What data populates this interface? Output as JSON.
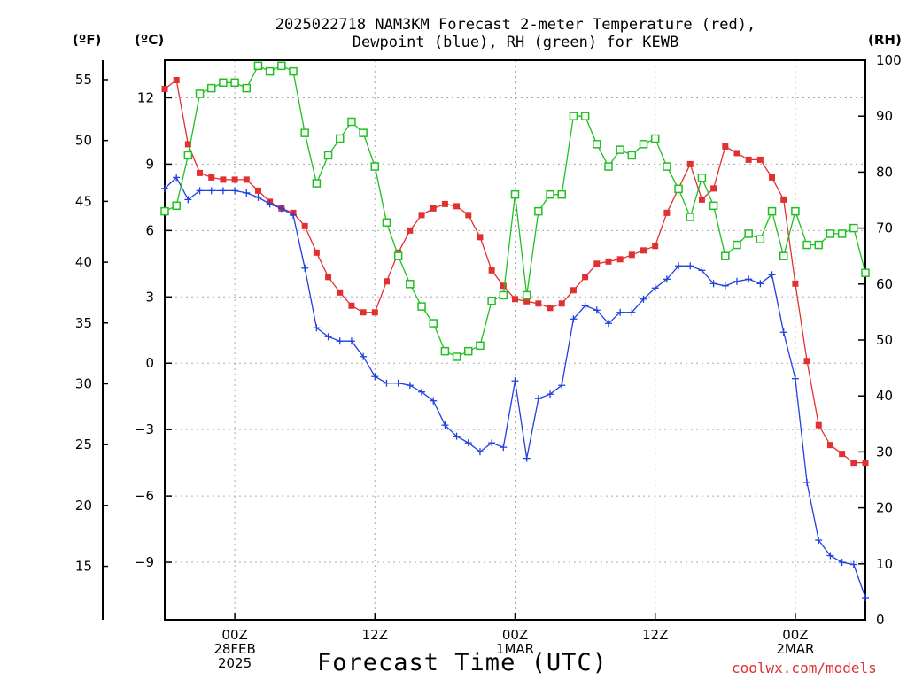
{
  "titles": {
    "line1": "2025022718 NAM3KM Forecast 2-meter Temperature (red),",
    "line2": "Dewpoint (blue), RH (green) for KEWB"
  },
  "units": {
    "fahrenheit": "(ºF)",
    "celsius": "(ºC)",
    "rh": "(RH)"
  },
  "xaxis_title": "Forecast Time (UTC)",
  "credit": "coolwx.com/models",
  "chart_data": {
    "type": "line",
    "title": "2025022718 NAM3KM Forecast 2-meter Temperature (red), Dewpoint (blue), RH (green) for KEWB",
    "xlabel": "Forecast Time (UTC)",
    "x_start": "2025-02-27 18Z",
    "x_interval_hours": 1,
    "x_ticks": [
      {
        "hour": 6,
        "lines": [
          "00Z",
          "28FEB",
          "2025"
        ]
      },
      {
        "hour": 18,
        "lines": [
          "12Z"
        ]
      },
      {
        "hour": 30,
        "lines": [
          "00Z",
          "1MAR"
        ]
      },
      {
        "hour": 42,
        "lines": [
          "12Z"
        ]
      },
      {
        "hour": 54,
        "lines": [
          "00Z",
          "2MAR"
        ]
      }
    ],
    "left_axis_f": {
      "label": "(ºF)",
      "ylim": [
        10.6,
        56.6
      ],
      "ticks": [
        15,
        20,
        25,
        30,
        35,
        40,
        45,
        50,
        55
      ]
    },
    "left_axis_c": {
      "label": "(ºC)",
      "ylim": [
        -11.6,
        13.7
      ],
      "ticks": [
        -9,
        -6,
        -3,
        0,
        3,
        6,
        9,
        12
      ]
    },
    "right_axis_rh": {
      "label": "(RH)",
      "ylim": [
        0,
        100
      ],
      "ticks": [
        0,
        10,
        20,
        30,
        40,
        50,
        60,
        70,
        80,
        90,
        100
      ]
    },
    "series": [
      {
        "color": "#e03030",
        "marker": "square",
        "axis": "celsius",
        "values": [
          12.4,
          12.8,
          9.9,
          8.6,
          8.4,
          8.3,
          8.3,
          8.3,
          7.8,
          7.3,
          7.0,
          6.8,
          6.2,
          5.0,
          3.9,
          3.2,
          2.6,
          2.3,
          2.3,
          3.7,
          5.0,
          6.0,
          6.7,
          7.0,
          7.2,
          7.1,
          6.7,
          5.7,
          4.2,
          3.5,
          2.9,
          2.8,
          2.7,
          2.5,
          2.7,
          3.3,
          3.9,
          4.5,
          4.6,
          4.7,
          4.9,
          5.1,
          5.3,
          6.8,
          7.9,
          9.0,
          7.4,
          7.9,
          9.8,
          9.5,
          9.2,
          9.2,
          8.4,
          7.4,
          3.6,
          0.1,
          -2.8,
          -3.7,
          -4.1,
          -4.5,
          -4.5
        ]
      },
      {
        "color": "#2040e0",
        "marker": "plus",
        "axis": "celsius",
        "values": [
          7.9,
          8.4,
          7.4,
          7.8,
          7.8,
          7.8,
          7.8,
          7.7,
          7.5,
          7.2,
          7.0,
          6.7,
          4.3,
          1.6,
          1.2,
          1.0,
          1.0,
          0.3,
          -0.6,
          -0.9,
          -0.9,
          -1.0,
          -1.3,
          -1.7,
          -2.8,
          -3.3,
          -3.6,
          -4.0,
          -3.6,
          -3.8,
          -0.8,
          -4.3,
          -1.6,
          -1.4,
          -1.0,
          2.0,
          2.6,
          2.4,
          1.8,
          2.3,
          2.3,
          2.9,
          3.4,
          3.8,
          4.4,
          4.4,
          4.2,
          3.6,
          3.5,
          3.7,
          3.8,
          3.6,
          4.0,
          1.4,
          -0.7,
          -5.4,
          -8.0,
          -8.7,
          -9.0,
          -9.1,
          -10.6
        ]
      },
      {
        "color": "#20c020",
        "marker": "open-square",
        "axis": "rh",
        "values": [
          73,
          74,
          83,
          94,
          95,
          96,
          96,
          95,
          99,
          98,
          99,
          98,
          87,
          78,
          83,
          86,
          89,
          87,
          81,
          71,
          65,
          60,
          56,
          53,
          48,
          47,
          48,
          49,
          57,
          58,
          76,
          58,
          73,
          76,
          76,
          90,
          90,
          85,
          81,
          84,
          83,
          85,
          86,
          81,
          77,
          72,
          79,
          74,
          65,
          67,
          69,
          68,
          73,
          65,
          73,
          67,
          67,
          69,
          69,
          70,
          62
        ]
      }
    ]
  }
}
